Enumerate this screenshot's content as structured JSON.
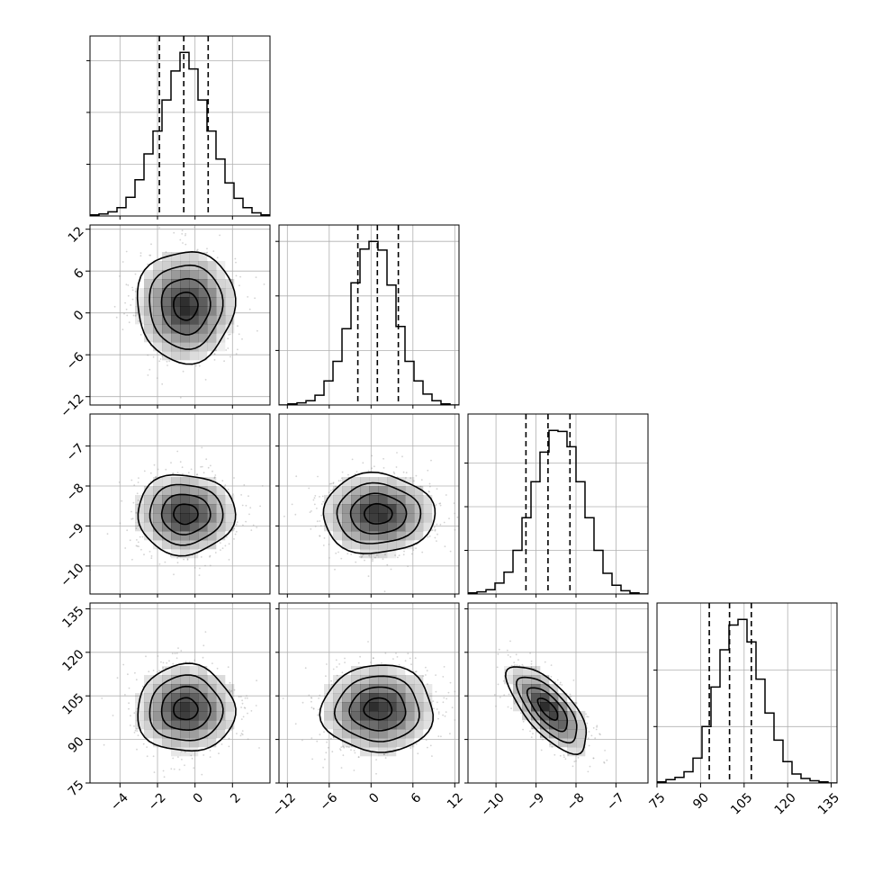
{
  "chart_data": {
    "type": "corner",
    "grid": true,
    "parameters": [
      {
        "range": [
          -5.6,
          4.0
        ],
        "ticks": [
          -4,
          -2,
          0,
          2
        ],
        "tick_labels": [
          "−4",
          "−2",
          "0",
          "2"
        ],
        "quantiles": [
          -1.9,
          -0.6,
          0.7
        ],
        "hist_edges": [
          -5.6,
          -5.12,
          -4.64,
          -4.16,
          -3.68,
          -3.2,
          -2.72,
          -2.24,
          -1.76,
          -1.28,
          -0.8,
          -0.32,
          0.16,
          0.64,
          1.12,
          1.6,
          2.08,
          2.56,
          3.04,
          3.52,
          4.0
        ],
        "hist_counts": [
          1,
          2,
          4,
          8,
          18,
          35,
          60,
          82,
          112,
          140,
          158,
          142,
          112,
          82,
          55,
          32,
          17,
          8,
          3,
          1
        ]
      },
      {
        "range": [
          -13.2,
          12.6
        ],
        "ticks": [
          -12,
          -6,
          0,
          6,
          12
        ],
        "tick_labels": [
          "−12",
          "−6",
          "0",
          "6",
          "12"
        ],
        "quantiles": [
          -1.9,
          0.9,
          3.9
        ],
        "hist_edges": [
          -13.2,
          -11.91,
          -10.62,
          -9.33,
          -8.04,
          -6.75,
          -5.46,
          -4.17,
          -2.88,
          -1.59,
          -0.3,
          0.99,
          2.28,
          3.57,
          4.86,
          6.15,
          7.44,
          8.73,
          10.02,
          11.31,
          12.6
        ],
        "hist_counts": [
          0,
          1,
          2,
          4,
          9,
          22,
          40,
          70,
          112,
          143,
          150,
          142,
          110,
          72,
          40,
          22,
          10,
          4,
          1,
          0
        ]
      },
      {
        "range": [
          -10.7,
          -6.2
        ],
        "ticks": [
          -10,
          -9,
          -8,
          -7
        ],
        "tick_labels": [
          "−10",
          "−9",
          "−8",
          "−7"
        ],
        "quantiles": [
          -9.25,
          -8.7,
          -8.15
        ],
        "hist_edges": [
          -10.7,
          -10.475,
          -10.25,
          -10.025,
          -9.8,
          -9.575,
          -9.35,
          -9.125,
          -8.9,
          -8.675,
          -8.45,
          -8.225,
          -8.0,
          -7.775,
          -7.55,
          -7.325,
          -7.1,
          -6.875,
          -6.65,
          -6.425,
          -6.2
        ],
        "hist_counts": [
          1,
          2,
          4,
          10,
          20,
          40,
          70,
          103,
          130,
          150,
          149,
          135,
          103,
          70,
          40,
          19,
          8,
          3,
          1,
          0
        ]
      },
      {
        "range": [
          75,
          137
        ],
        "ticks": [
          75,
          90,
          105,
          120,
          135
        ],
        "tick_labels": [
          "75",
          "90",
          "105",
          "120",
          "135"
        ],
        "quantiles": [
          93,
          100,
          107.5
        ],
        "hist_edges": [
          75,
          78.1,
          81.2,
          84.3,
          87.4,
          90.5,
          93.6,
          96.7,
          99.8,
          102.9,
          106.0,
          109.1,
          112.2,
          115.3,
          118.4,
          121.5,
          124.6,
          127.7,
          130.8,
          133.9,
          137
        ],
        "hist_counts": [
          1,
          3,
          5,
          10,
          22,
          50,
          85,
          118,
          140,
          145,
          125,
          92,
          62,
          38,
          19,
          8,
          4,
          2,
          1,
          0
        ]
      }
    ],
    "histogram_yticks": [
      [
        50,
        100,
        150
      ],
      [
        50,
        100,
        150
      ],
      [
        40,
        80,
        120
      ],
      [
        50,
        100
      ]
    ],
    "pairs": [
      {
        "row": 1,
        "col": 0,
        "mean": [
          -0.5,
          1.0
        ],
        "sd": [
          1.3,
          4.0
        ],
        "rho": 0.0
      },
      {
        "row": 2,
        "col": 0,
        "mean": [
          -0.5,
          -8.7
        ],
        "sd": [
          1.3,
          0.5
        ],
        "rho": 0.0
      },
      {
        "row": 2,
        "col": 1,
        "mean": [
          1.0,
          -8.7
        ],
        "sd": [
          4.0,
          0.5
        ],
        "rho": 0.0
      },
      {
        "row": 3,
        "col": 0,
        "mean": [
          -0.5,
          100.5
        ],
        "sd": [
          1.3,
          7.5
        ],
        "rho": 0.0
      },
      {
        "row": 3,
        "col": 1,
        "mean": [
          1.0,
          100.5
        ],
        "sd": [
          4.0,
          7.5
        ],
        "rho": 0.0
      },
      {
        "row": 3,
        "col": 2,
        "mean": [
          -8.7,
          100.5
        ],
        "sd": [
          0.5,
          7.5
        ],
        "rho": -0.7
      }
    ],
    "contour_levels_sigma": [
      0.5,
      1.0,
      1.5,
      2.0
    ],
    "colors": {
      "hist_line": "#000000",
      "contour": "#000000",
      "scatter_points": "#9e9e9e",
      "density_fill": "#000000",
      "grid": "#b0b0b0"
    }
  }
}
